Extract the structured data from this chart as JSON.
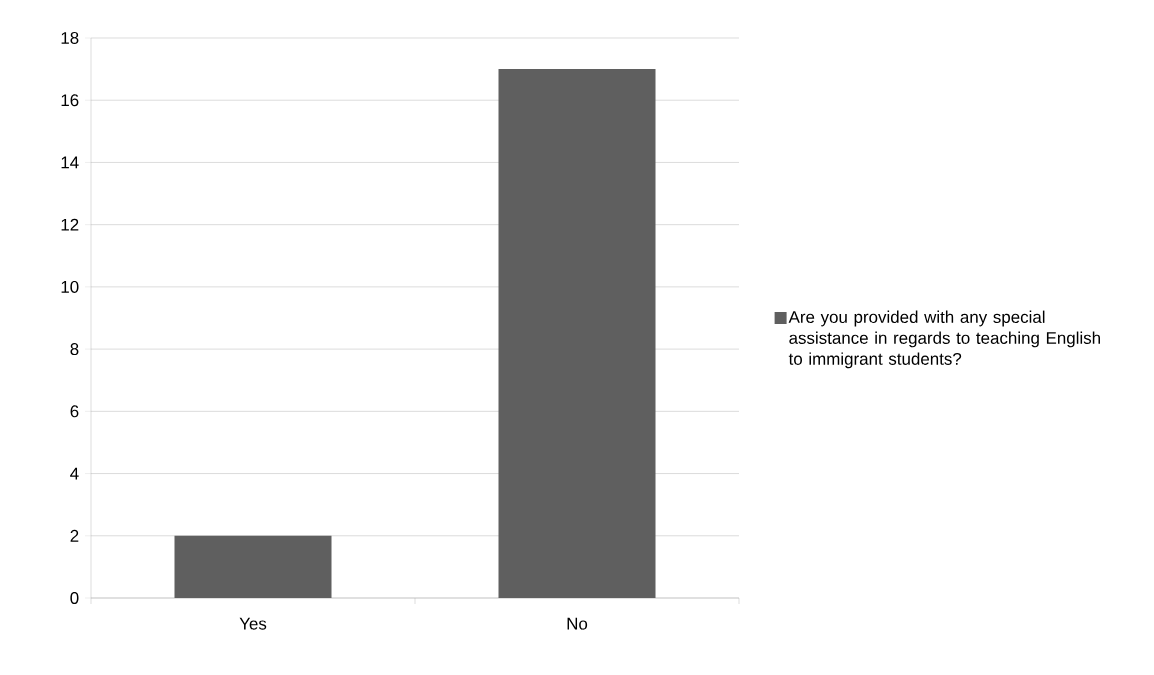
{
  "chart_data": {
    "type": "bar",
    "categories": [
      "Yes",
      "No"
    ],
    "series": [
      {
        "name": "Are you provided with any special assistance in regards to teaching English to immigrant students?",
        "color": "#5f5f5f",
        "values": [
          2,
          17
        ]
      }
    ],
    "ylim": [
      0,
      18
    ],
    "yticks": [
      0,
      2,
      4,
      6,
      8,
      10,
      12,
      14,
      16,
      18
    ],
    "grid": "y",
    "legend": "right"
  }
}
